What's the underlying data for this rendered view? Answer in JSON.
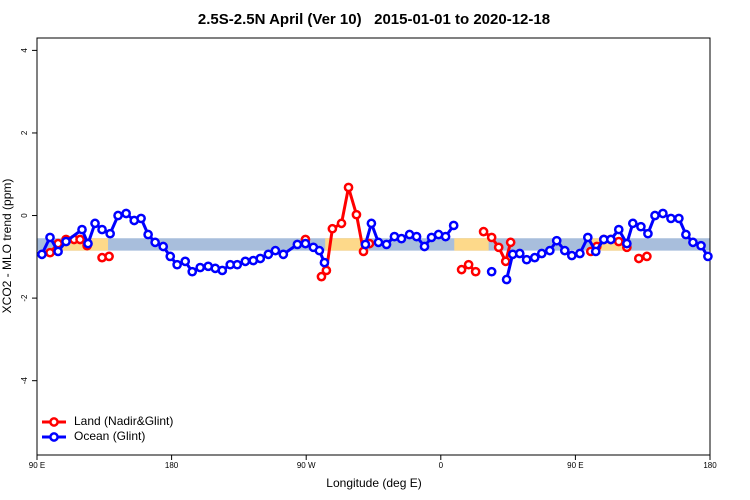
{
  "chart_data": {
    "type": "line",
    "title": "2.5S-2.5N April (Ver 10)   2015-01-01 to 2020-12-18",
    "x_label": "Longitude (deg E)",
    "y_label": "XCO2 - MLO trend (ppm)",
    "xlim": [
      90,
      540
    ],
    "ylim": [
      -5.8,
      4.3
    ],
    "xticks": [
      {
        "value": 90,
        "label": "90 E"
      },
      180,
      {
        "value": 270,
        "label": "90 W"
      },
      {
        "value": 360,
        "label": "0"
      },
      {
        "value": 450,
        "label": "90 E"
      },
      {
        "value": 540,
        "label": "180"
      }
    ],
    "yticks": [
      -4,
      -2,
      0,
      2,
      4
    ],
    "legend": "bottomleft",
    "bands": [
      {
        "color": "#a8bedc",
        "x": [
          90,
          540
        ],
        "y": [
          -0.85,
          -0.55
        ]
      },
      {
        "color": "#fdd98a",
        "x": [
          106.7,
          137.5
        ],
        "y": [
          -0.85,
          -0.55
        ]
      },
      {
        "color": "#fdd98a",
        "x": [
          282.7,
          311.5
        ],
        "y": [
          -0.85,
          -0.55
        ]
      },
      {
        "color": "#fdd98a",
        "x": [
          369,
          392
        ],
        "y": [
          -0.85,
          -0.55
        ]
      },
      {
        "color": "#fdd98a",
        "x": [
          460,
          483
        ],
        "y": [
          -0.85,
          -0.55
        ]
      }
    ],
    "series": [
      {
        "name": "Land (Nadir&Glint)",
        "color": "#ff0000",
        "x": [
          98.7,
          104.1,
          109.4,
          114.8,
          118.8,
          123.5,
          null,
          133.5,
          138.2,
          null,
          269.5,
          null,
          280.2,
          283.5,
          287.5,
          293.6,
          298.3,
          303.6,
          308.3,
          312.3,
          null,
          373.9,
          378.6,
          383.3,
          null,
          388.6,
          394,
          398.7,
          403.4,
          406.7,
          null,
          460.3,
          464.3,
          469,
          473.7,
          479,
          484.4,
          null,
          492.4,
          497.8
        ],
        "values": [
          -0.9,
          -0.68,
          -0.58,
          -0.58,
          -0.58,
          -0.73,
          null,
          -1.02,
          -0.99,
          null,
          -0.58,
          null,
          -1.48,
          -1.33,
          -0.32,
          -0.19,
          0.68,
          0.02,
          -0.87,
          -0.68,
          null,
          -1.31,
          -1.19,
          -1.36,
          null,
          -0.39,
          -0.53,
          -0.77,
          -1.11,
          -0.65,
          null,
          -0.87,
          -0.75,
          -0.58,
          -0.58,
          -0.63,
          -0.77,
          null,
          -1.04,
          -0.99
        ]
      },
      {
        "name": "Ocean (Glint)",
        "color": "#0000ff",
        "x": [
          93.3,
          98.7,
          104.1,
          109.4,
          120.1,
          124.1,
          128.8,
          133.5,
          138.9,
          144.2,
          149.6,
          155,
          159.6,
          164.3,
          169,
          174.4,
          179.1,
          183.7,
          189.1,
          193.8,
          199.1,
          204.5,
          209.2,
          213.9,
          219.2,
          223.9,
          229.3,
          234.6,
          239.3,
          244.7,
          249.4,
          254.7,
          264.1,
          269.5,
          274.8,
          278.8,
          282.2,
          null,
          309.6,
          313.6,
          318.3,
          323.7,
          329,
          333.7,
          339.1,
          343.8,
          349.1,
          353.8,
          358.5,
          363.2,
          368.6,
          null,
          394,
          null,
          404,
          408.1,
          412.8,
          417.4,
          422.8,
          427.5,
          432.9,
          437.5,
          442.9,
          447.6,
          453,
          458.3,
          463.6,
          469,
          473.7,
          479,
          484.4,
          488.4,
          493.8,
          498.5,
          503.2,
          508.5,
          513.9,
          519.2,
          523.9,
          528.6,
          534,
          538.6
        ],
        "values": [
          -0.94,
          -0.53,
          -0.87,
          -0.63,
          -0.34,
          -0.68,
          -0.19,
          -0.34,
          -0.44,
          0,
          0.05,
          -0.12,
          -0.07,
          -0.46,
          -0.65,
          -0.75,
          -0.99,
          -1.19,
          -1.11,
          -1.36,
          -1.26,
          -1.23,
          -1.28,
          -1.33,
          -1.19,
          -1.19,
          -1.11,
          -1.09,
          -1.04,
          -0.94,
          -0.85,
          -0.94,
          -0.7,
          -0.68,
          -0.77,
          -0.85,
          -1.14,
          null,
          -0.7,
          -0.19,
          -0.65,
          -0.7,
          -0.51,
          -0.56,
          -0.46,
          -0.51,
          -0.75,
          -0.53,
          -0.46,
          -0.51,
          -0.24,
          null,
          -1.36,
          null,
          -1.55,
          -0.94,
          -0.92,
          -1.07,
          -1.02,
          -0.92,
          -0.85,
          -0.61,
          -0.85,
          -0.97,
          -0.92,
          -0.53,
          -0.87,
          -0.58,
          -0.58,
          -0.34,
          -0.68,
          -0.19,
          -0.27,
          -0.44,
          0,
          0.05,
          -0.07,
          -0.07,
          -0.46,
          -0.65,
          -0.73,
          -0.99
        ]
      }
    ]
  }
}
